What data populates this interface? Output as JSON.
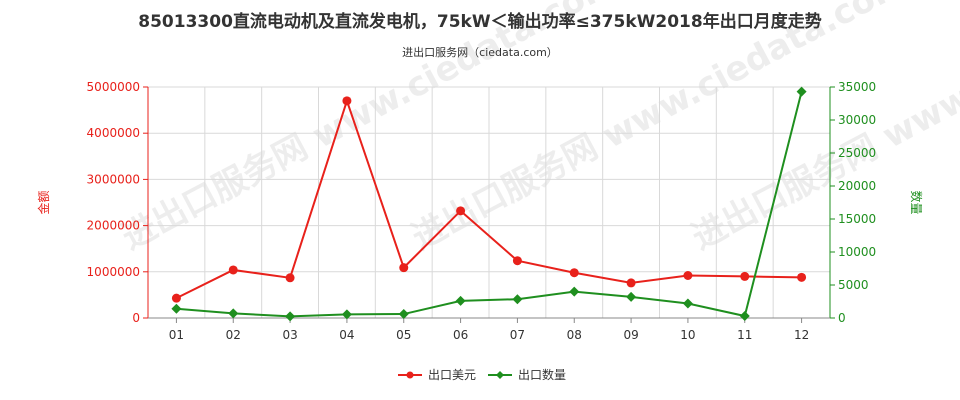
{
  "chart_data": {
    "type": "line",
    "title": "85013300直流电动机及直流发电机，75kW＜输出功率≤375kW2018年出口月度走势",
    "subtitle": "进出口服务网（ciedata.com）",
    "watermark": "进出口服务网 www.ciedata.com",
    "categories": [
      "01",
      "02",
      "03",
      "04",
      "05",
      "06",
      "07",
      "08",
      "09",
      "10",
      "11",
      "12"
    ],
    "y_left": {
      "label": "金额",
      "ylim": [
        0,
        5000000
      ],
      "ticks": [
        "0",
        "1000000",
        "2000000",
        "3000000",
        "4000000",
        "5000000"
      ],
      "color": "#e8211b"
    },
    "y_right": {
      "label": "数量",
      "ylim": [
        0,
        35000
      ],
      "ticks": [
        "0",
        "5000",
        "10000",
        "15000",
        "20000",
        "25000",
        "30000",
        "35000"
      ],
      "color": "#1f8f1f"
    },
    "series": [
      {
        "name": "出口美元",
        "axis": "left",
        "color": "#e8211b",
        "values": [
          430000,
          1040000,
          870000,
          4700000,
          1090000,
          2320000,
          1240000,
          980000,
          760000,
          920000,
          900000,
          880000
        ]
      },
      {
        "name": "出口数量",
        "axis": "right",
        "color": "#1f8f1f",
        "values": [
          1400,
          700,
          250,
          550,
          600,
          2600,
          2850,
          4000,
          3200,
          2200,
          300,
          34300
        ]
      }
    ],
    "grid": true,
    "legend_position": "bottom-center"
  }
}
